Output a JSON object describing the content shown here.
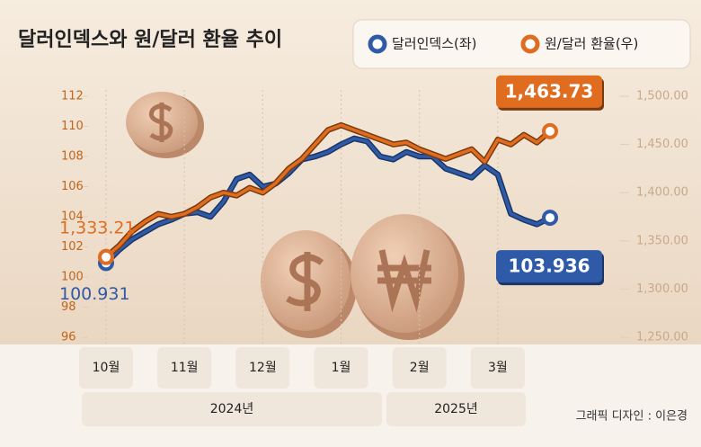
{
  "chart_data": {
    "type": "line",
    "title": "달러인덱스와 원/달러 환율 추이",
    "credit": "그래픽 디자인 : 이은경",
    "x": [
      "10월",
      null,
      null,
      null,
      null,
      null,
      "11월",
      null,
      null,
      null,
      null,
      null,
      "12월",
      null,
      null,
      null,
      null,
      null,
      "1월",
      null,
      null,
      null,
      null,
      null,
      "2월",
      null,
      null,
      null,
      null,
      null,
      "3월",
      null,
      null,
      null,
      null
    ],
    "x_groups": [
      "2024년",
      "2025년"
    ],
    "series": [
      {
        "name": "달러인덱스(좌)",
        "color": "#2f5aa8",
        "values": [
          100.931,
          101.8,
          102.5,
          103.0,
          103.5,
          103.8,
          104.2,
          104.3,
          104.0,
          105.0,
          106.5,
          106.8,
          106.0,
          106.2,
          106.9,
          107.8,
          108.0,
          108.3,
          108.8,
          109.2,
          109.0,
          108.0,
          107.8,
          108.3,
          108.0,
          108.0,
          107.2,
          106.9,
          106.6,
          107.4,
          106.8,
          104.2,
          103.8,
          103.5,
          103.936
        ],
        "value_labels": [
          "100.931",
          null,
          null,
          null,
          null,
          null,
          null,
          null,
          null,
          null,
          null,
          null,
          null,
          null,
          null,
          null,
          null,
          null,
          null,
          null,
          null,
          null,
          null,
          null,
          null,
          null,
          null,
          null,
          null,
          null,
          null,
          null,
          null,
          null,
          "103.936"
        ]
      },
      {
        "name": "원/달러 환율(우)",
        "color": "#e06d1f",
        "axis": "y2",
        "values": [
          1333.21,
          1345,
          1360,
          1370,
          1378,
          1375,
          1378,
          1385,
          1395,
          1400,
          1397,
          1405,
          1400,
          1410,
          1425,
          1435,
          1450,
          1465,
          1470,
          1465,
          1460,
          1455,
          1450,
          1452,
          1445,
          1440,
          1435,
          1440,
          1445,
          1432,
          1455,
          1450,
          1460,
          1452,
          1463.73
        ],
        "value_labels": [
          "1,333.21",
          null,
          null,
          null,
          null,
          null,
          null,
          null,
          null,
          null,
          null,
          null,
          null,
          null,
          null,
          null,
          null,
          null,
          null,
          null,
          null,
          null,
          null,
          null,
          null,
          null,
          null,
          null,
          null,
          null,
          null,
          null,
          null,
          null,
          "1,463.73"
        ]
      }
    ],
    "ylim": [
      96,
      112
    ],
    "yticks": [
      96,
      98,
      100,
      102,
      104,
      106,
      108,
      110,
      112
    ],
    "y2lim": [
      1250,
      1500
    ],
    "y2ticks": [
      {
        "value": 1250,
        "label": "1,250.00"
      },
      {
        "value": 1300,
        "label": "1,300.00"
      },
      {
        "value": 1350,
        "label": "1,350.00"
      },
      {
        "value": 1400,
        "label": "1,400.00"
      },
      {
        "value": 1450,
        "label": "1,450.00"
      },
      {
        "value": 1500,
        "label": "1,500.00"
      }
    ],
    "legend": "top-right"
  }
}
